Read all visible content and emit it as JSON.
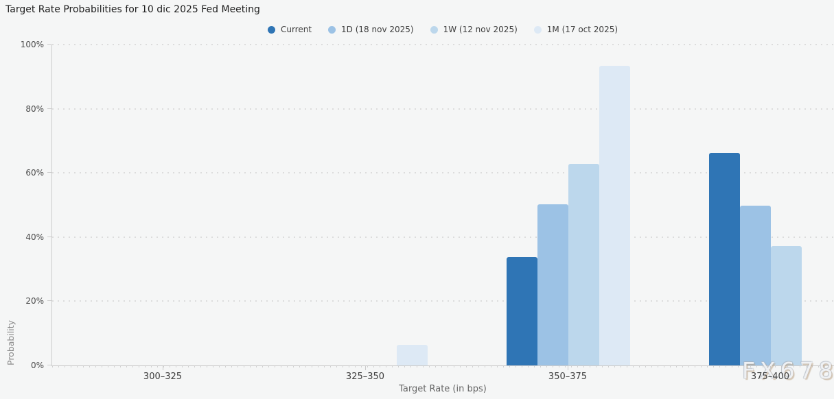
{
  "watermark": "FX678",
  "chart_data": {
    "type": "bar",
    "title": "Target Rate Probabilities for 10 dic 2025 Fed Meeting",
    "xlabel": "Target Rate (in bps)",
    "ylabel": "Probability",
    "categories": [
      "300–325",
      "325–350",
      "350–375",
      "375–400"
    ],
    "series": [
      {
        "name": "Current",
        "color": "#2f75b5",
        "values": [
          0,
          0,
          33.7,
          66.3
        ]
      },
      {
        "name": "1D (18 nov 2025)",
        "color": "#9cc2e5",
        "values": [
          0,
          0,
          50.3,
          49.7
        ]
      },
      {
        "name": "1W (12 nov 2025)",
        "color": "#bcd7ec",
        "values": [
          0,
          0,
          62.8,
          37.2
        ]
      },
      {
        "name": "1M (17 oct 2025)",
        "color": "#dde9f5",
        "values": [
          0,
          6.5,
          93.4,
          0
        ]
      }
    ],
    "ylim": [
      0,
      100
    ],
    "yticks": [
      0,
      20,
      40,
      60,
      80,
      100
    ],
    "ytick_suffix": "%",
    "grid": "dotted-horizontal",
    "legend_position": "top"
  }
}
